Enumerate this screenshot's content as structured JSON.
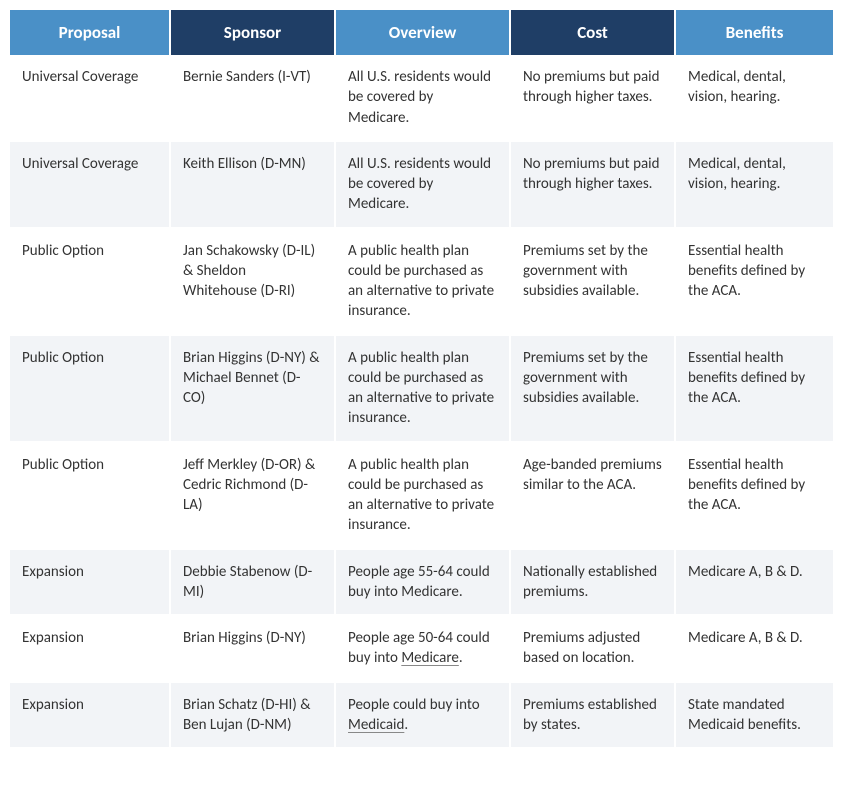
{
  "table": {
    "header_colors": [
      "#4a90c7",
      "#1f3e66",
      "#4a90c7",
      "#1f3e66",
      "#4a90c7"
    ],
    "row_colors": [
      "#ffffff",
      "#f2f4f7"
    ],
    "col_widths": [
      "160px",
      "165px",
      "175px",
      "165px",
      "158px"
    ],
    "columns": [
      "Proposal",
      "Sponsor",
      "Overview",
      "Cost",
      "Benefits"
    ],
    "rows": [
      {
        "cells": [
          "Universal Coverage",
          "Bernie Sanders (I-VT)",
          "All U.S. residents would be covered by Medicare.",
          "No premiums but paid through higher taxes.",
          "Medical, dental, vision, hearing."
        ]
      },
      {
        "cells": [
          "Universal Coverage",
          "Keith Ellison (D-MN)",
          "All U.S. residents would be covered by Medicare.",
          "No premiums but paid through higher taxes.",
          "Medical, dental, vision, hearing."
        ]
      },
      {
        "cells": [
          "Public Option",
          "Jan Schakowsky (D-IL) & Sheldon Whitehouse (D-RI)",
          "A public health plan could be purchased as an alternative to private insurance.",
          "Premiums set by the government with subsidies available.",
          "Essential health benefits defined by the ACA."
        ]
      },
      {
        "cells": [
          "Public Option",
          "Brian Higgins (D-NY) & Michael Bennet (D-CO)",
          "A public health plan could be purchased as an alternative to private insurance.",
          "Premiums set by the government with subsidies available.",
          "Essential health benefits defined by the ACA."
        ]
      },
      {
        "cells": [
          "Public Option",
          "Jeff Merkley (D-OR) & Cedric Richmond (D-LA)",
          "A public health plan could be purchased as an alternative to private insurance.",
          "Age-banded premiums similar to the ACA.",
          "Essential health benefits defined by the ACA."
        ]
      },
      {
        "cells": [
          "Expansion",
          "Debbie Stabenow (D-MI)",
          "People age 55-64 could buy into Medicare.",
          "Nationally established premiums.",
          "Medicare A, B & D."
        ]
      },
      {
        "cells": [
          "Expansion",
          "Brian Higgins (D-NY)",
          "People age 50-64 could buy into Medicare.",
          "Premiums adjusted based on location.",
          "Medicare A, B & D."
        ],
        "underline_word": {
          "col": 2,
          "word": "Medicare"
        }
      },
      {
        "cells": [
          "Expansion",
          "Brian Schatz (D-HI) & Ben Lujan (D-NM)",
          "People could buy into Medicaid.",
          "Premiums established by states.",
          "State mandated Medicaid benefits."
        ],
        "underline_word": {
          "col": 2,
          "word": "Medicaid"
        }
      }
    ]
  }
}
